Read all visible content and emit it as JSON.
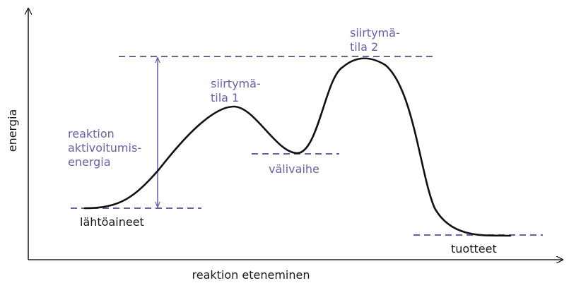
{
  "axes": {
    "x_label": "reaktion eteneminen",
    "y_label": "energia"
  },
  "labels": {
    "reactants": "lähtöaineet",
    "products": "tuotteet",
    "intermediate": "välivaihe",
    "transition_state_1": [
      "siirtymä-",
      "tila 1"
    ],
    "transition_state_2": [
      "siirtymä-",
      "tila 2"
    ],
    "activation_energy": [
      "reaktion",
      "aktivoitumis-",
      "energia"
    ]
  },
  "colors": {
    "accent": "#6b5fa8",
    "curve": "#111111",
    "axis": "#222222"
  }
}
